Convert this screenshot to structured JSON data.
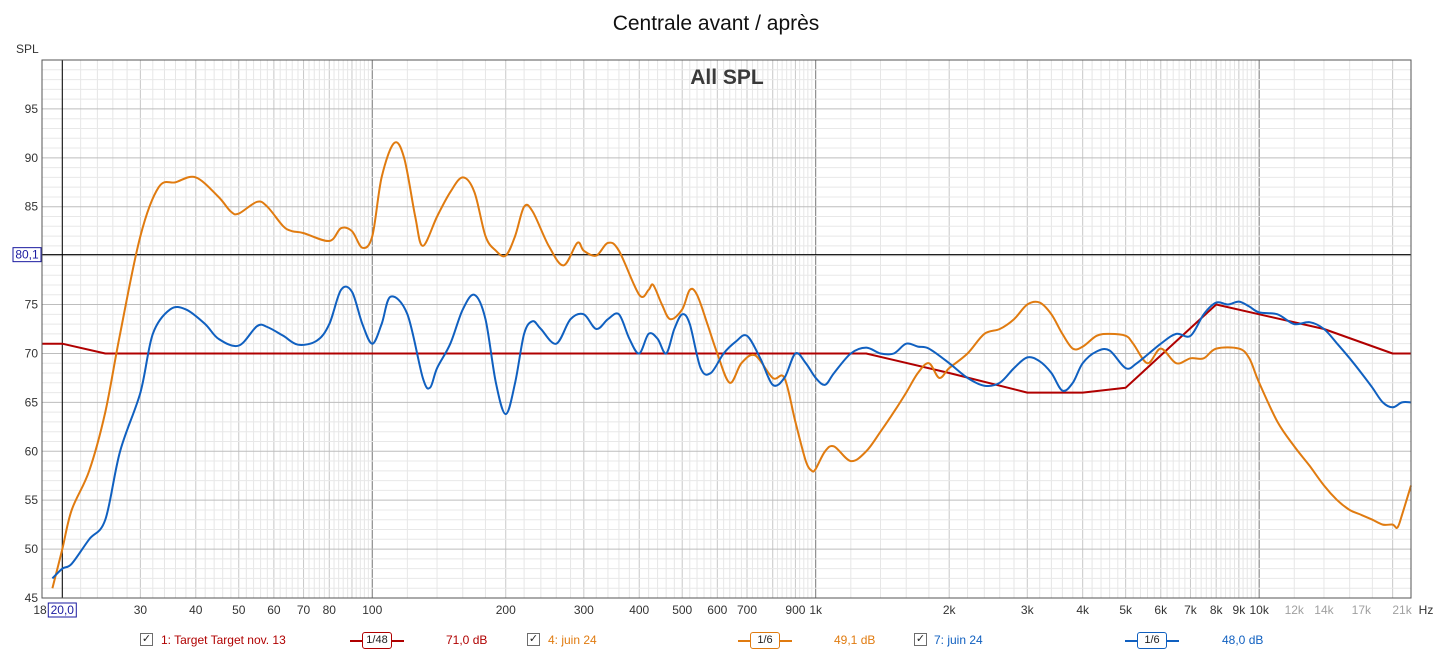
{
  "chart_data": {
    "type": "line",
    "title": "Centrale avant / après",
    "subtitle": "All SPL",
    "ylabel": "SPL",
    "xlabel": "",
    "x_scale": "log",
    "xlim": [
      18,
      22000
    ],
    "ylim": [
      45,
      100
    ],
    "y_ticks": [
      50,
      55,
      60,
      65,
      70,
      75,
      80,
      85,
      90,
      95
    ],
    "x_major_ticks": [
      {
        "value": 30,
        "label": "30"
      },
      {
        "value": 40,
        "label": "40"
      },
      {
        "value": 50,
        "label": "50"
      },
      {
        "value": 60,
        "label": "60"
      },
      {
        "value": 70,
        "label": "70"
      },
      {
        "value": 80,
        "label": "80"
      },
      {
        "value": 100,
        "label": "100"
      },
      {
        "value": 200,
        "label": "200"
      },
      {
        "value": 300,
        "label": "300"
      },
      {
        "value": 400,
        "label": "400"
      },
      {
        "value": 500,
        "label": "500"
      },
      {
        "value": 600,
        "label": "600"
      },
      {
        "value": 700,
        "label": "700"
      },
      {
        "value": 900,
        "label": "900"
      },
      {
        "value": 1000,
        "label": "1k"
      },
      {
        "value": 2000,
        "label": "2k"
      },
      {
        "value": 3000,
        "label": "3k"
      },
      {
        "value": 4000,
        "label": "4k"
      },
      {
        "value": 5000,
        "label": "5k"
      },
      {
        "value": 6000,
        "label": "6k"
      },
      {
        "value": 7000,
        "label": "7k"
      },
      {
        "value": 8000,
        "label": "8k"
      },
      {
        "value": 9000,
        "label": "9k"
      },
      {
        "value": 10000,
        "label": "10k"
      }
    ],
    "x_minor_labels": [
      {
        "value": 12000,
        "label": "12k"
      },
      {
        "value": 14000,
        "label": "14k"
      },
      {
        "value": 17000,
        "label": "17k"
      },
      {
        "value": 21000,
        "label": "21k"
      }
    ],
    "x_start_label": "18",
    "x_unit_label": "Hz",
    "cursor": {
      "x": 20,
      "x_label": "20,0",
      "y": 80.1,
      "y_label": "80,1"
    },
    "grid": true,
    "series": [
      {
        "name": "1: Target Target nov. 13",
        "color": "#b00000",
        "smoothing": "1/48",
        "level": "71,0 dB",
        "points": [
          [
            18,
            71
          ],
          [
            20,
            71
          ],
          [
            25,
            70
          ],
          [
            1300,
            70
          ],
          [
            2000,
            68
          ],
          [
            3000,
            66
          ],
          [
            4000,
            66
          ],
          [
            5000,
            66.5
          ],
          [
            8000,
            75
          ],
          [
            10000,
            74
          ],
          [
            14000,
            72.5
          ],
          [
            20000,
            70
          ],
          [
            22000,
            70
          ]
        ]
      },
      {
        "name": "4: juin 24",
        "color": "#e07b10",
        "smoothing": "1/6",
        "level": "49,1 dB",
        "points": [
          [
            19,
            46
          ],
          [
            20,
            50
          ],
          [
            21,
            54
          ],
          [
            23,
            58
          ],
          [
            25,
            64
          ],
          [
            27,
            72
          ],
          [
            30,
            82
          ],
          [
            33,
            87
          ],
          [
            36,
            87.5
          ],
          [
            40,
            88
          ],
          [
            45,
            86
          ],
          [
            48,
            84.5
          ],
          [
            50,
            84.3
          ],
          [
            55,
            85.5
          ],
          [
            58,
            85
          ],
          [
            63,
            83
          ],
          [
            66,
            82.5
          ],
          [
            70,
            82.3
          ],
          [
            80,
            81.5
          ],
          [
            85,
            82.8
          ],
          [
            90,
            82.5
          ],
          [
            95,
            80.8
          ],
          [
            100,
            82
          ],
          [
            105,
            88
          ],
          [
            112,
            91.5
          ],
          [
            118,
            90
          ],
          [
            125,
            84
          ],
          [
            130,
            81
          ],
          [
            140,
            84
          ],
          [
            150,
            86.5
          ],
          [
            160,
            88
          ],
          [
            170,
            86.5
          ],
          [
            180,
            82
          ],
          [
            190,
            80.5
          ],
          [
            200,
            80
          ],
          [
            210,
            82
          ],
          [
            220,
            85
          ],
          [
            230,
            84.5
          ],
          [
            250,
            81
          ],
          [
            270,
            79
          ],
          [
            290,
            81.3
          ],
          [
            300,
            80.5
          ],
          [
            320,
            80
          ],
          [
            340,
            81.3
          ],
          [
            360,
            80.5
          ],
          [
            400,
            76
          ],
          [
            420,
            76.5
          ],
          [
            430,
            77
          ],
          [
            450,
            75
          ],
          [
            470,
            73.5
          ],
          [
            500,
            74.5
          ],
          [
            520,
            76.5
          ],
          [
            540,
            76
          ],
          [
            570,
            73
          ],
          [
            600,
            70
          ],
          [
            640,
            67
          ],
          [
            680,
            69
          ],
          [
            730,
            69.8
          ],
          [
            800,
            67.5
          ],
          [
            850,
            67.5
          ],
          [
            900,
            63
          ],
          [
            950,
            59
          ],
          [
            980,
            58
          ],
          [
            1000,
            58.2
          ],
          [
            1050,
            60
          ],
          [
            1100,
            60.5
          ],
          [
            1200,
            59
          ],
          [
            1300,
            60
          ],
          [
            1400,
            62
          ],
          [
            1500,
            64
          ],
          [
            1600,
            66
          ],
          [
            1700,
            68
          ],
          [
            1800,
            69
          ],
          [
            1900,
            67.5
          ],
          [
            2000,
            68.5
          ],
          [
            2200,
            70
          ],
          [
            2400,
            72
          ],
          [
            2600,
            72.5
          ],
          [
            2800,
            73.5
          ],
          [
            3000,
            75
          ],
          [
            3200,
            75.2
          ],
          [
            3400,
            74
          ],
          [
            3600,
            72
          ],
          [
            3800,
            70.5
          ],
          [
            4000,
            70.7
          ],
          [
            4300,
            71.8
          ],
          [
            4600,
            72
          ],
          [
            5000,
            71.8
          ],
          [
            5200,
            71
          ],
          [
            5600,
            69
          ],
          [
            6000,
            70.5
          ],
          [
            6500,
            69
          ],
          [
            7000,
            69.5
          ],
          [
            7500,
            69.5
          ],
          [
            8000,
            70.5
          ],
          [
            9000,
            70.5
          ],
          [
            9500,
            69.5
          ],
          [
            10000,
            67
          ],
          [
            11000,
            63
          ],
          [
            12000,
            60.5
          ],
          [
            13000,
            58.5
          ],
          [
            14000,
            56.5
          ],
          [
            15000,
            55
          ],
          [
            16000,
            54
          ],
          [
            17000,
            53.5
          ],
          [
            18000,
            53
          ],
          [
            19000,
            52.5
          ],
          [
            20000,
            52.5
          ],
          [
            20500,
            52.2
          ],
          [
            21000,
            53.5
          ],
          [
            22000,
            56.5
          ]
        ]
      },
      {
        "name": "7: juin 24",
        "color": "#1060c0",
        "smoothing": "1/6",
        "level": "48,0 dB",
        "points": [
          [
            19,
            47
          ],
          [
            20,
            48
          ],
          [
            21,
            48.5
          ],
          [
            23,
            51
          ],
          [
            25,
            53
          ],
          [
            27,
            60
          ],
          [
            30,
            66
          ],
          [
            32,
            72
          ],
          [
            35,
            74.5
          ],
          [
            38,
            74.5
          ],
          [
            42,
            73
          ],
          [
            45,
            71.5
          ],
          [
            50,
            70.8
          ],
          [
            55,
            72.8
          ],
          [
            58,
            72.7
          ],
          [
            63,
            71.8
          ],
          [
            68,
            70.9
          ],
          [
            75,
            71.3
          ],
          [
            80,
            73
          ],
          [
            85,
            76.5
          ],
          [
            90,
            76.3
          ],
          [
            95,
            73
          ],
          [
            100,
            71
          ],
          [
            105,
            73
          ],
          [
            110,
            75.8
          ],
          [
            120,
            74
          ],
          [
            130,
            67.5
          ],
          [
            135,
            66.5
          ],
          [
            140,
            68.5
          ],
          [
            150,
            71
          ],
          [
            160,
            74.5
          ],
          [
            170,
            76
          ],
          [
            180,
            73.5
          ],
          [
            190,
            67
          ],
          [
            200,
            63.8
          ],
          [
            210,
            67
          ],
          [
            220,
            72
          ],
          [
            230,
            73.3
          ],
          [
            240,
            72.5
          ],
          [
            260,
            71
          ],
          [
            280,
            73.5
          ],
          [
            300,
            74
          ],
          [
            320,
            72.5
          ],
          [
            340,
            73.5
          ],
          [
            360,
            74
          ],
          [
            380,
            71.5
          ],
          [
            400,
            70
          ],
          [
            420,
            72
          ],
          [
            440,
            71.5
          ],
          [
            460,
            70
          ],
          [
            480,
            72.5
          ],
          [
            500,
            74
          ],
          [
            520,
            73
          ],
          [
            550,
            68.5
          ],
          [
            580,
            68
          ],
          [
            620,
            70
          ],
          [
            660,
            71.2
          ],
          [
            700,
            71.8
          ],
          [
            750,
            69.5
          ],
          [
            800,
            66.8
          ],
          [
            850,
            67.5
          ],
          [
            900,
            70
          ],
          [
            950,
            69
          ],
          [
            1000,
            67.5
          ],
          [
            1050,
            66.8
          ],
          [
            1100,
            68
          ],
          [
            1200,
            70
          ],
          [
            1300,
            70.6
          ],
          [
            1400,
            70
          ],
          [
            1500,
            70
          ],
          [
            1600,
            71
          ],
          [
            1700,
            70.7
          ],
          [
            1800,
            70.5
          ],
          [
            2000,
            69
          ],
          [
            2200,
            67.5
          ],
          [
            2400,
            66.7
          ],
          [
            2600,
            67
          ],
          [
            2800,
            68.5
          ],
          [
            3000,
            69.6
          ],
          [
            3200,
            69.2
          ],
          [
            3400,
            68
          ],
          [
            3600,
            66.2
          ],
          [
            3800,
            67
          ],
          [
            4000,
            69
          ],
          [
            4300,
            70.2
          ],
          [
            4600,
            70.3
          ],
          [
            5000,
            68.5
          ],
          [
            5300,
            69
          ],
          [
            6000,
            71
          ],
          [
            6500,
            72
          ],
          [
            7000,
            71.8
          ],
          [
            7500,
            74
          ],
          [
            8000,
            75.2
          ],
          [
            8500,
            75
          ],
          [
            9000,
            75.3
          ],
          [
            9500,
            74.8
          ],
          [
            10000,
            74.2
          ],
          [
            11000,
            74
          ],
          [
            12000,
            73
          ],
          [
            13000,
            73.2
          ],
          [
            14000,
            72.5
          ],
          [
            15000,
            71
          ],
          [
            16000,
            69.5
          ],
          [
            17000,
            68
          ],
          [
            18000,
            66.5
          ],
          [
            19000,
            65
          ],
          [
            20000,
            64.5
          ],
          [
            21000,
            65
          ],
          [
            22000,
            65
          ]
        ]
      }
    ]
  }
}
